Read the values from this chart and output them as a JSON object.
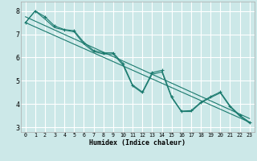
{
  "xlabel": "Humidex (Indice chaleur)",
  "xlim": [
    -0.5,
    23.5
  ],
  "ylim": [
    2.8,
    8.4
  ],
  "yticks": [
    3,
    4,
    5,
    6,
    7,
    8
  ],
  "xticks": [
    0,
    1,
    2,
    3,
    4,
    5,
    6,
    7,
    8,
    9,
    10,
    11,
    12,
    13,
    14,
    15,
    16,
    17,
    18,
    19,
    20,
    21,
    22,
    23
  ],
  "bg_color": "#cce8e8",
  "grid_color": "#ffffff",
  "line_color": "#1a7a6e",
  "line1_x": [
    0,
    1,
    2,
    3,
    4,
    5,
    6,
    7,
    8,
    9,
    10,
    11,
    12,
    13,
    14,
    15,
    16,
    17,
    18,
    19,
    20,
    21,
    22,
    23
  ],
  "line1_y": [
    7.5,
    8.0,
    7.75,
    7.35,
    7.2,
    7.15,
    6.65,
    6.3,
    6.2,
    6.2,
    5.75,
    4.82,
    4.52,
    5.35,
    5.45,
    4.32,
    3.7,
    3.72,
    4.08,
    4.32,
    4.52,
    3.92,
    3.52,
    3.22
  ],
  "line2_x": [
    0,
    1,
    2,
    3,
    4,
    5,
    6,
    7,
    8,
    9,
    10,
    11,
    12,
    13,
    14,
    15,
    16,
    17,
    18,
    19,
    20,
    21,
    22,
    23
  ],
  "line2_y": [
    7.5,
    8.0,
    7.65,
    7.28,
    7.18,
    7.1,
    6.58,
    6.25,
    6.15,
    6.15,
    5.68,
    4.78,
    4.48,
    5.28,
    5.38,
    4.28,
    3.68,
    3.68,
    4.05,
    4.28,
    4.48,
    3.88,
    3.48,
    3.18
  ],
  "line3_x": [
    0,
    23
  ],
  "line3_y": [
    7.5,
    3.22
  ],
  "line4_x": [
    0,
    23
  ],
  "line4_y": [
    7.75,
    3.38
  ]
}
